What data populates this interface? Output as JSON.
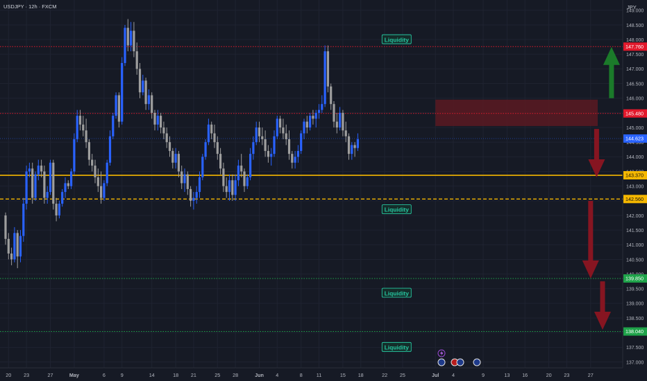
{
  "header": {
    "symbol": "USDJPY · 12h · FXCM"
  },
  "currency": "JPY",
  "colors": {
    "background": "#161a25",
    "grid": "#1f2331",
    "up": "#2962ff",
    "down": "#9e9e9e",
    "axis_text": "#b2b5be",
    "resistance_red": "#e2192c",
    "gold": "#f5b700",
    "support_green": "#1fa34a",
    "liquidity_teal": "#26c6a0",
    "arrow_green": "#1b7f2a",
    "arrow_red": "#8c1521",
    "zone": "#5a1a22",
    "last_price": "#2962ff"
  },
  "chart_data": {
    "type": "candlestick",
    "ylim": [
      136.8,
      149.35
    ],
    "y_ticks": [
      137.0,
      137.5,
      138.0,
      138.5,
      139.0,
      139.5,
      140.0,
      140.5,
      141.0,
      141.5,
      142.0,
      142.5,
      143.0,
      143.5,
      144.0,
      144.5,
      145.0,
      145.5,
      146.0,
      146.5,
      147.0,
      147.5,
      148.0,
      148.5,
      149.0
    ],
    "x_ticks": [
      {
        "label": "20",
        "i": 1
      },
      {
        "label": "23",
        "i": 7
      },
      {
        "label": "27",
        "i": 15
      },
      {
        "label": "May",
        "i": 23,
        "bold": true
      },
      {
        "label": "6",
        "i": 33
      },
      {
        "label": "9",
        "i": 39
      },
      {
        "label": "14",
        "i": 49
      },
      {
        "label": "18",
        "i": 57
      },
      {
        "label": "21",
        "i": 63
      },
      {
        "label": "25",
        "i": 71
      },
      {
        "label": "28",
        "i": 77
      },
      {
        "label": "Jun",
        "i": 85,
        "bold": true
      },
      {
        "label": "4",
        "i": 91
      },
      {
        "label": "8",
        "i": 99
      },
      {
        "label": "11",
        "i": 105
      },
      {
        "label": "15",
        "i": 113
      },
      {
        "label": "18",
        "i": 119
      },
      {
        "label": "22",
        "i": 127
      },
      {
        "label": "25",
        "i": 133
      },
      {
        "label": "Jul",
        "i": 144,
        "bold": true
      },
      {
        "label": "4",
        "i": 150
      },
      {
        "label": "9",
        "i": 160
      },
      {
        "label": "13",
        "i": 168
      },
      {
        "label": "16",
        "i": 174
      },
      {
        "label": "20",
        "i": 182
      },
      {
        "label": "23",
        "i": 188
      },
      {
        "label": "27",
        "i": 196
      }
    ],
    "candles": [
      [
        142.0,
        142.1,
        141.0,
        141.2
      ],
      [
        141.2,
        141.4,
        140.5,
        140.7
      ],
      [
        140.7,
        140.9,
        140.3,
        140.5
      ],
      [
        140.5,
        141.6,
        140.4,
        141.4
      ],
      [
        141.4,
        141.5,
        140.2,
        140.6
      ],
      [
        140.6,
        141.5,
        140.4,
        141.3
      ],
      [
        141.3,
        142.6,
        141.1,
        142.4
      ],
      [
        142.4,
        143.7,
        142.2,
        143.5
      ],
      [
        143.5,
        143.8,
        143.3,
        143.6
      ],
      [
        143.6,
        143.8,
        142.4,
        142.6
      ],
      [
        142.6,
        143.5,
        142.5,
        143.4
      ],
      [
        143.4,
        143.9,
        143.2,
        143.7
      ],
      [
        143.7,
        143.9,
        143.3,
        143.5
      ],
      [
        143.5,
        143.7,
        142.4,
        142.6
      ],
      [
        142.6,
        143.0,
        142.4,
        142.8
      ],
      [
        142.8,
        143.9,
        142.7,
        143.8
      ],
      [
        143.8,
        143.9,
        142.2,
        142.4
      ],
      [
        142.4,
        142.6,
        141.8,
        142.0
      ],
      [
        142.0,
        142.5,
        141.9,
        142.4
      ],
      [
        142.4,
        142.9,
        142.3,
        142.8
      ],
      [
        142.8,
        143.3,
        142.6,
        143.1
      ],
      [
        143.1,
        143.2,
        142.9,
        143.0
      ],
      [
        143.0,
        143.6,
        142.9,
        143.5
      ],
      [
        143.5,
        144.8,
        143.4,
        144.6
      ],
      [
        144.6,
        145.6,
        144.5,
        145.4
      ],
      [
        145.4,
        145.6,
        144.9,
        145.1
      ],
      [
        145.1,
        145.4,
        144.7,
        144.9
      ],
      [
        144.9,
        145.3,
        144.3,
        144.5
      ],
      [
        144.5,
        144.6,
        143.7,
        143.9
      ],
      [
        143.9,
        144.1,
        143.5,
        143.7
      ],
      [
        143.7,
        143.9,
        143.1,
        143.3
      ],
      [
        143.3,
        143.6,
        142.8,
        143.0
      ],
      [
        143.0,
        143.5,
        142.4,
        142.6
      ],
      [
        142.6,
        143.2,
        142.5,
        143.1
      ],
      [
        143.1,
        143.9,
        143.0,
        143.8
      ],
      [
        143.8,
        144.9,
        143.7,
        144.7
      ],
      [
        144.7,
        145.5,
        144.6,
        145.4
      ],
      [
        145.4,
        146.2,
        145.3,
        146.1
      ],
      [
        146.1,
        146.2,
        145.0,
        145.2
      ],
      [
        145.2,
        147.4,
        145.1,
        147.2
      ],
      [
        147.2,
        148.5,
        147.1,
        148.4
      ],
      [
        148.4,
        148.7,
        147.6,
        147.8
      ],
      [
        147.8,
        148.6,
        147.6,
        148.3
      ],
      [
        148.3,
        148.6,
        147.4,
        147.6
      ],
      [
        147.6,
        147.9,
        146.8,
        147.0
      ],
      [
        147.0,
        147.2,
        146.0,
        146.2
      ],
      [
        146.2,
        146.8,
        146.1,
        146.6
      ],
      [
        146.6,
        146.7,
        145.6,
        145.8
      ],
      [
        145.8,
        146.3,
        145.6,
        146.1
      ],
      [
        146.1,
        146.2,
        145.3,
        145.5
      ],
      [
        145.5,
        145.6,
        144.9,
        145.1
      ],
      [
        145.1,
        145.6,
        144.9,
        145.4
      ],
      [
        145.4,
        145.5,
        144.8,
        145.0
      ],
      [
        145.0,
        145.2,
        144.6,
        144.8
      ],
      [
        144.8,
        145.0,
        144.3,
        144.5
      ],
      [
        144.5,
        144.7,
        144.0,
        144.2
      ],
      [
        144.2,
        144.3,
        143.6,
        143.8
      ],
      [
        143.8,
        144.3,
        143.6,
        144.1
      ],
      [
        144.1,
        144.2,
        143.3,
        143.5
      ],
      [
        143.5,
        143.7,
        142.9,
        143.1
      ],
      [
        143.1,
        143.6,
        142.8,
        143.4
      ],
      [
        143.4,
        143.5,
        142.7,
        142.9
      ],
      [
        142.9,
        143.0,
        142.3,
        142.5
      ],
      [
        142.5,
        142.8,
        142.2,
        142.6
      ],
      [
        142.6,
        143.0,
        142.4,
        142.8
      ],
      [
        142.8,
        143.5,
        142.6,
        143.3
      ],
      [
        143.3,
        144.1,
        143.2,
        144.0
      ],
      [
        144.0,
        144.6,
        143.9,
        144.5
      ],
      [
        144.5,
        145.3,
        144.4,
        145.1
      ],
      [
        145.1,
        145.2,
        144.6,
        144.8
      ],
      [
        144.8,
        145.1,
        144.3,
        144.5
      ],
      [
        144.5,
        144.7,
        143.9,
        144.1
      ],
      [
        144.1,
        144.3,
        143.4,
        143.6
      ],
      [
        143.6,
        143.8,
        142.8,
        143.0
      ],
      [
        143.0,
        143.3,
        142.6,
        142.8
      ],
      [
        142.8,
        143.4,
        142.5,
        143.2
      ],
      [
        143.2,
        143.4,
        142.5,
        142.7
      ],
      [
        142.7,
        143.4,
        142.5,
        143.2
      ],
      [
        143.2,
        143.9,
        143.0,
        143.7
      ],
      [
        143.7,
        144.1,
        143.3,
        143.5
      ],
      [
        143.5,
        143.6,
        142.8,
        143.0
      ],
      [
        143.0,
        143.4,
        142.9,
        143.3
      ],
      [
        143.3,
        144.3,
        143.2,
        144.1
      ],
      [
        144.1,
        144.7,
        143.9,
        144.5
      ],
      [
        144.5,
        145.2,
        144.4,
        145.0
      ],
      [
        145.0,
        145.2,
        144.5,
        144.7
      ],
      [
        144.7,
        145.0,
        144.4,
        144.6
      ],
      [
        144.6,
        144.9,
        144.0,
        144.2
      ],
      [
        144.2,
        144.4,
        143.8,
        144.0
      ],
      [
        144.0,
        144.3,
        143.7,
        144.1
      ],
      [
        144.1,
        144.9,
        144.0,
        144.7
      ],
      [
        144.7,
        145.4,
        144.6,
        145.3
      ],
      [
        145.3,
        145.4,
        144.8,
        145.0
      ],
      [
        145.0,
        145.3,
        144.6,
        144.8
      ],
      [
        144.8,
        145.1,
        144.4,
        144.6
      ],
      [
        144.6,
        144.9,
        143.9,
        144.1
      ],
      [
        144.1,
        144.2,
        143.6,
        143.8
      ],
      [
        143.8,
        144.2,
        143.6,
        144.0
      ],
      [
        144.0,
        144.4,
        143.8,
        144.2
      ],
      [
        144.2,
        144.9,
        144.1,
        144.8
      ],
      [
        144.8,
        145.3,
        144.6,
        145.2
      ],
      [
        145.2,
        145.4,
        144.8,
        145.0
      ],
      [
        145.0,
        145.5,
        144.9,
        145.4
      ],
      [
        145.4,
        145.6,
        145.1,
        145.3
      ],
      [
        145.3,
        145.6,
        145.0,
        145.5
      ],
      [
        145.5,
        145.8,
        145.3,
        145.6
      ],
      [
        145.6,
        146.1,
        145.5,
        145.8
      ],
      [
        145.8,
        147.8,
        145.7,
        147.6
      ],
      [
        147.6,
        147.8,
        146.2,
        146.4
      ],
      [
        146.4,
        146.5,
        145.6,
        145.8
      ],
      [
        145.8,
        145.9,
        145.0,
        145.2
      ],
      [
        145.2,
        145.5,
        144.8,
        145.0
      ],
      [
        145.0,
        145.7,
        144.9,
        145.5
      ],
      [
        145.5,
        145.6,
        144.7,
        144.9
      ],
      [
        144.9,
        145.2,
        144.5,
        144.7
      ],
      [
        144.7,
        144.8,
        143.9,
        144.1
      ],
      [
        144.1,
        144.5,
        143.9,
        144.4
      ],
      [
        144.4,
        144.5,
        144.0,
        144.3
      ],
      [
        144.3,
        144.8,
        144.2,
        144.6
      ]
    ],
    "last_price": 144.623,
    "price_labels": [
      {
        "value": 147.76,
        "label": "147.760",
        "kind": "red"
      },
      {
        "value": 145.48,
        "label": "145.480",
        "kind": "red"
      },
      {
        "value": 144.623,
        "label": "144.623",
        "kind": "blue"
      },
      {
        "value": 143.37,
        "label": "143.370",
        "kind": "gold"
      },
      {
        "value": 142.56,
        "label": "142.560",
        "kind": "gold"
      },
      {
        "value": 139.85,
        "label": "139.850",
        "kind": "green"
      },
      {
        "value": 138.04,
        "label": "138.040",
        "kind": "green"
      }
    ],
    "levels": [
      {
        "value": 147.76,
        "style": "red-dotted"
      },
      {
        "value": 145.48,
        "style": "red-dotted"
      },
      {
        "value": 143.37,
        "style": "gold-solid"
      },
      {
        "value": 142.56,
        "style": "gold-dashed"
      },
      {
        "value": 139.85,
        "style": "green-dotted"
      },
      {
        "value": 138.04,
        "style": "green-dotted"
      }
    ],
    "supply_zone": {
      "top": 145.95,
      "bottom": 145.05,
      "from_i": 144,
      "to_i": 203
    },
    "annotations": [
      {
        "text": "Liquidity",
        "price": 148.0,
        "i": 131
      },
      {
        "text": "Liquidity",
        "price": 142.2,
        "i": 131
      },
      {
        "text": "Liquidity",
        "price": 139.35,
        "i": 131
      },
      {
        "text": "Liquidity",
        "price": 137.5,
        "i": 131
      }
    ],
    "arrows": [
      {
        "direction": "up",
        "color": "green",
        "i": 203,
        "from": 146.0,
        "to": 147.75
      },
      {
        "direction": "down",
        "color": "red",
        "i": 198,
        "from": 144.95,
        "to": 143.3
      },
      {
        "direction": "down",
        "color": "red",
        "i": 196,
        "from": 142.5,
        "to": 139.85
      },
      {
        "direction": "down",
        "color": "red",
        "i": 200,
        "from": 139.75,
        "to": 138.1
      }
    ]
  }
}
